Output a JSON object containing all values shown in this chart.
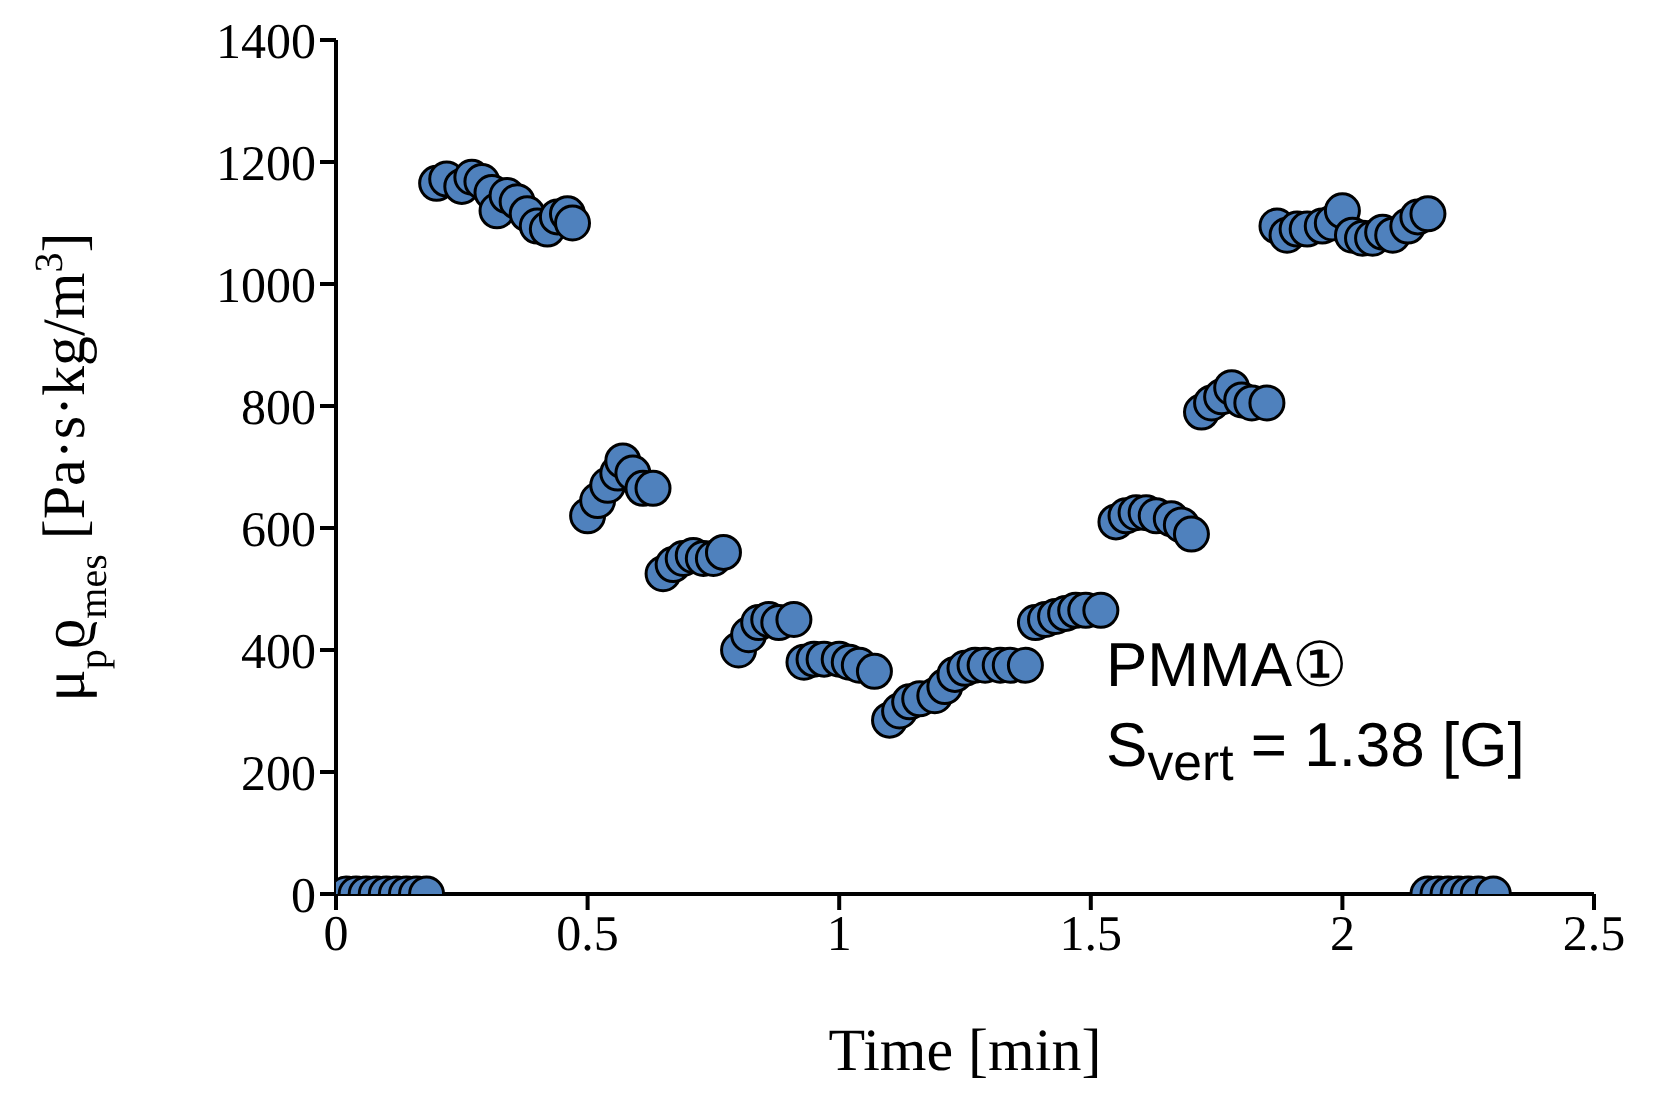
{
  "chart_data": {
    "type": "scatter",
    "xlabel": "Time [min]",
    "ylabel": "μ$_{p}$ϱ$_{mes}$ [Pa·s·kg/m$^{3}$]",
    "annotations": [
      "PMMA①",
      "S$_{vert}$ = 1.38 [G]"
    ],
    "xlim": [
      0,
      2.5
    ],
    "xticks": [
      0,
      0.5,
      1,
      1.5,
      2,
      2.5
    ],
    "ylim": [
      0,
      1400
    ],
    "yticks": [
      0,
      200,
      400,
      600,
      800,
      1000,
      1200,
      1400
    ],
    "grid": false,
    "legend": false,
    "marker": "circle",
    "series": [
      {
        "color": "#4f81bd",
        "x": [
          0.02,
          0.04,
          0.06,
          0.08,
          0.1,
          0.12,
          0.14,
          0.16,
          0.18,
          0.2,
          0.22,
          0.25,
          0.27,
          0.29,
          0.31,
          0.32,
          0.34,
          0.36,
          0.38,
          0.4,
          0.42,
          0.44,
          0.46,
          0.47,
          0.5,
          0.52,
          0.54,
          0.56,
          0.57,
          0.59,
          0.61,
          0.63,
          0.65,
          0.67,
          0.69,
          0.71,
          0.73,
          0.75,
          0.77,
          0.8,
          0.82,
          0.84,
          0.86,
          0.88,
          0.91,
          0.93,
          0.95,
          0.97,
          1.0,
          1.02,
          1.04,
          1.07,
          1.1,
          1.12,
          1.14,
          1.16,
          1.19,
          1.21,
          1.23,
          1.25,
          1.27,
          1.29,
          1.32,
          1.34,
          1.37,
          1.39,
          1.41,
          1.43,
          1.45,
          1.47,
          1.49,
          1.52,
          1.55,
          1.57,
          1.59,
          1.61,
          1.63,
          1.66,
          1.68,
          1.7,
          1.72,
          1.74,
          1.76,
          1.78,
          1.8,
          1.82,
          1.85,
          1.87,
          1.89,
          1.91,
          1.93,
          1.96,
          1.98,
          2.0,
          2.02,
          2.04,
          2.06,
          2.08,
          2.1,
          2.13,
          2.15,
          2.17,
          2.17,
          2.19,
          2.21,
          2.23,
          2.25,
          2.27,
          2.3
        ],
        "values": [
          0,
          0,
          0,
          0,
          0,
          0,
          0,
          0,
          0,
          1165,
          1172,
          1160,
          1175,
          1168,
          1150,
          1120,
          1145,
          1135,
          1115,
          1095,
          1090,
          1110,
          1115,
          1100,
          620,
          645,
          670,
          690,
          710,
          690,
          665,
          665,
          525,
          540,
          550,
          555,
          550,
          550,
          560,
          400,
          425,
          445,
          450,
          445,
          450,
          380,
          385,
          385,
          385,
          380,
          375,
          365,
          285,
          300,
          315,
          320,
          325,
          340,
          360,
          370,
          375,
          375,
          375,
          375,
          375,
          445,
          450,
          455,
          460,
          465,
          465,
          465,
          610,
          620,
          625,
          625,
          620,
          615,
          605,
          590,
          790,
          805,
          815,
          830,
          810,
          805,
          805,
          1095,
          1080,
          1090,
          1090,
          1095,
          1100,
          1120,
          1080,
          1075,
          1075,
          1085,
          1080,
          1095,
          1110,
          1115,
          0,
          0,
          0,
          0,
          0,
          0,
          0
        ]
      }
    ]
  }
}
